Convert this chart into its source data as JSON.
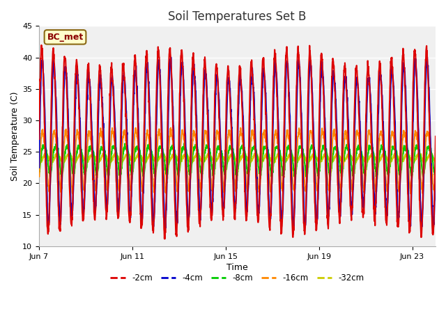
{
  "title": "Soil Temperatures Set B",
  "xlabel": "Time",
  "ylabel": "Soil Temperature (C)",
  "ylim": [
    10,
    45
  ],
  "xlim_days": [
    0,
    17
  ],
  "annotation": "BC_met",
  "fig_facecolor": "#ffffff",
  "plot_facecolor": "#f0f0f0",
  "series": {
    "2cm": {
      "color": "#dd0000",
      "linewidth": 1.5,
      "label": "-2cm"
    },
    "4cm": {
      "color": "#0000cc",
      "linewidth": 1.5,
      "label": "-4cm"
    },
    "8cm": {
      "color": "#00cc00",
      "linewidth": 1.5,
      "label": "-8cm"
    },
    "16cm": {
      "color": "#ff8800",
      "linewidth": 1.5,
      "label": "-16cm"
    },
    "32cm": {
      "color": "#cccc00",
      "linewidth": 1.8,
      "label": "-32cm"
    }
  },
  "x_ticks": [
    0,
    4,
    8,
    12,
    16
  ],
  "x_tick_labels": [
    "Jun 7",
    "Jun 11",
    "Jun 15",
    "Jun 19",
    "Jun 23"
  ],
  "grid_color": "#ffffff",
  "num_points": 2000
}
